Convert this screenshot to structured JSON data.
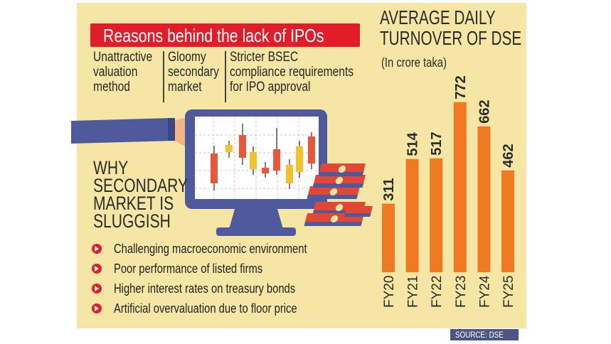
{
  "reasons": {
    "title": "Reasons behind the lack of IPOs",
    "items": [
      "Unattractive\nvaluation\nmethod",
      "Gloomy\nsecondary\nmarket",
      "Stricter BSEC\ncompliance requirements\nfor IPO approval"
    ]
  },
  "why": {
    "title": "WHY\nSECONDARY\nMARKET IS\nSLUGGISH",
    "bullets": [
      "Challenging macroeconomic environment",
      "Poor performance of listed firms",
      "Higher interest rates on treasury bonds",
      "Artificial overvaluation due to floor price"
    ]
  },
  "chart_data": {
    "type": "bar",
    "title": "AVERAGE DAILY\nTURNOVER OF DSE",
    "subtitle": "(In crore taka)",
    "categories": [
      "FY20",
      "FY21",
      "FY22",
      "FY23",
      "FY24",
      "FY25"
    ],
    "values": [
      311,
      514,
      517,
      772,
      662,
      462
    ],
    "bar_color": "#f07a22",
    "grid": false,
    "legend": "none"
  },
  "source": "SOURCE: DSE",
  "colors": {
    "background": "#f6e6a6",
    "accent_red": "#e11d2a",
    "bar": "#f07a22",
    "sleeve": "#4e5a9c",
    "source_box": "#4d5582"
  }
}
